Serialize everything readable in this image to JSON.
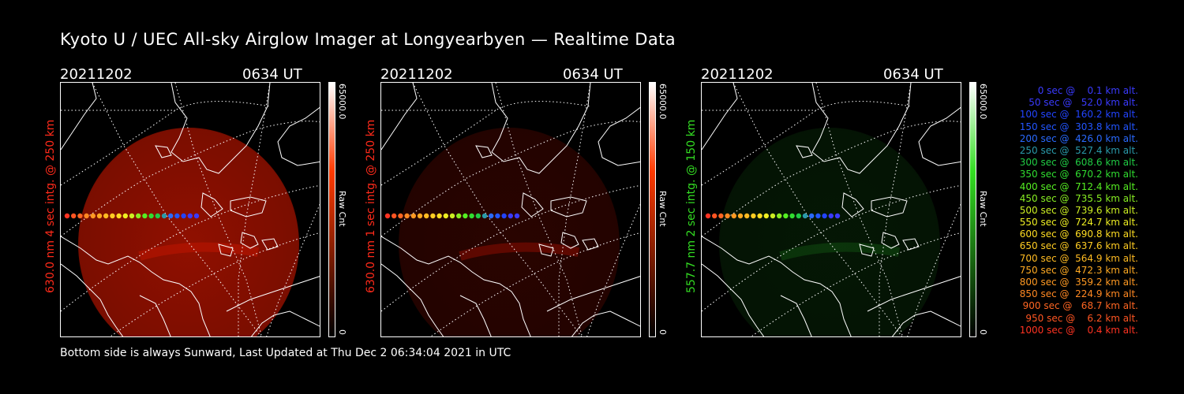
{
  "title": "Kyoto U / UEC All-sky Airglow Imager at Longyearbyen — Realtime Data",
  "footer": "Bottom side is always Sunward, Last Updated at Thu Dec  2 06:34:04 2021 in UTC",
  "panels": [
    {
      "date": "20211202",
      "time": "0634 UT",
      "side_label": "630.0 nm 4 sec intg. @ 250 km",
      "label_color": "#ff2a1a",
      "colorbar_max": "65000.0",
      "colorbar_unit": "Raw Cnt",
      "colorbar_min": "0",
      "colorbar_color": "#ff3a00",
      "airglow_color": "#c01500",
      "airglow_intensity": 0.75
    },
    {
      "date": "20211202",
      "time": "0634 UT",
      "side_label": "630.0 nm 1 sec intg. @ 250 km",
      "label_color": "#ff2a1a",
      "colorbar_max": "65000.0",
      "colorbar_unit": "Raw Cnt",
      "colorbar_min": "0",
      "colorbar_color": "#ff3a00",
      "airglow_color": "#8a0c00",
      "airglow_intensity": 0.3
    },
    {
      "date": "20211202",
      "time": "0634 UT",
      "side_label": "557.7 nm 2 sec intg. @ 150 km",
      "label_color": "#33dd22",
      "colorbar_max": "65000.0",
      "colorbar_unit": "Raw Cnt",
      "colorbar_min": "0",
      "colorbar_color": "#33dd22",
      "airglow_color": "#104c10",
      "airglow_intensity": 0.3
    }
  ],
  "legend": [
    {
      "text": "0 sec @    0.1 km alt.",
      "color": "#3a3aff"
    },
    {
      "text": "50 sec @   52.0 km alt.",
      "color": "#3a3aff"
    },
    {
      "text": "100 sec @  160.2 km alt.",
      "color": "#2244ff"
    },
    {
      "text": "150 sec @  303.8 km alt.",
      "color": "#2255ff"
    },
    {
      "text": "200 sec @  426.0 km alt.",
      "color": "#2a6aff"
    },
    {
      "text": "250 sec @  527.4 km alt.",
      "color": "#2a9aaa"
    },
    {
      "text": "300 sec @  608.6 km alt.",
      "color": "#20cc44"
    },
    {
      "text": "350 sec @  670.2 km alt.",
      "color": "#30dd30"
    },
    {
      "text": "400 sec @  712.4 km alt.",
      "color": "#55ee22"
    },
    {
      "text": "450 sec @  735.5 km alt.",
      "color": "#88ee22"
    },
    {
      "text": "500 sec @  739.6 km alt.",
      "color": "#ccee22"
    },
    {
      "text": "550 sec @  724.7 km alt.",
      "color": "#eeee22"
    },
    {
      "text": "600 sec @  690.8 km alt.",
      "color": "#ffdd22"
    },
    {
      "text": "650 sec @  637.6 km alt.",
      "color": "#ffcc22"
    },
    {
      "text": "700 sec @  564.9 km alt.",
      "color": "#ffbb22"
    },
    {
      "text": "750 sec @  472.3 km alt.",
      "color": "#ffaa22"
    },
    {
      "text": "800 sec @  359.2 km alt.",
      "color": "#ff9922"
    },
    {
      "text": "850 sec @  224.9 km alt.",
      "color": "#ff8822"
    },
    {
      "text": "900 sec @   68.7 km alt.",
      "color": "#ff6622"
    },
    {
      "text": "950 sec @    6.2 km alt.",
      "color": "#ff5522"
    },
    {
      "text": "1000 sec @    0.4 km alt.",
      "color": "#ff3322"
    }
  ]
}
